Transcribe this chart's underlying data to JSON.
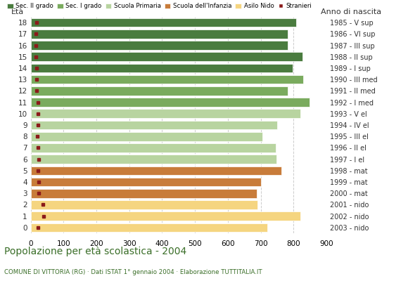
{
  "ages": [
    18,
    17,
    16,
    15,
    14,
    13,
    12,
    11,
    10,
    9,
    8,
    7,
    6,
    5,
    4,
    3,
    2,
    1,
    0
  ],
  "birth_years": [
    "1985 - V sup",
    "1986 - VI sup",
    "1987 - III sup",
    "1988 - II sup",
    "1989 - I sup",
    "1990 - III med",
    "1991 - II med",
    "1992 - I med",
    "1993 - V el",
    "1994 - IV el",
    "1995 - III el",
    "1996 - II el",
    "1997 - I el",
    "1998 - mat",
    "1999 - mat",
    "2000 - mat",
    "2001 - nido",
    "2002 - nido",
    "2003 - nido"
  ],
  "bar_values": [
    808,
    782,
    782,
    828,
    798,
    830,
    782,
    848,
    820,
    750,
    705,
    745,
    748,
    762,
    700,
    688,
    690,
    820,
    720
  ],
  "bar_colors": [
    "#4a7c3f",
    "#4a7c3f",
    "#4a7c3f",
    "#4a7c3f",
    "#4a7c3f",
    "#7aab5e",
    "#7aab5e",
    "#7aab5e",
    "#b8d4a0",
    "#b8d4a0",
    "#b8d4a0",
    "#b8d4a0",
    "#b8d4a0",
    "#c87c3a",
    "#c87c3a",
    "#c87c3a",
    "#f5d580",
    "#f5d580",
    "#f5d580"
  ],
  "stranieri_values": [
    18,
    16,
    16,
    16,
    18,
    18,
    18,
    22,
    22,
    22,
    20,
    22,
    25,
    22,
    25,
    25,
    38,
    40,
    22
  ],
  "stranieri_color": "#8b1a1a",
  "legend_labels": [
    "Sec. II grado",
    "Sec. I grado",
    "Scuola Primaria",
    "Scuola dell'Infanzia",
    "Asilo Nido",
    "Stranieri"
  ],
  "legend_colors": [
    "#4a7c3f",
    "#7aab5e",
    "#b8d4a0",
    "#c87c3a",
    "#f5d580",
    "#8b1a1a"
  ],
  "xlim": [
    0,
    900
  ],
  "xticks": [
    0,
    100,
    200,
    300,
    400,
    500,
    600,
    700,
    800,
    900
  ],
  "title": "Popolazione per età scolastica - 2004",
  "subtitle": "COMUNE DI VITTORIA (RG) · Dati ISTAT 1° gennaio 2004 · Elaborazione TUTTITALIA.IT",
  "eta_label": "Età",
  "anno_label": "Anno di nascita",
  "bar_height": 0.78,
  "grid_color": "#cccccc",
  "bg_color": "#ffffff",
  "bar_edge_color": "#ffffff",
  "title_color": "#3a6e28",
  "subtitle_color": "#3a6e28"
}
